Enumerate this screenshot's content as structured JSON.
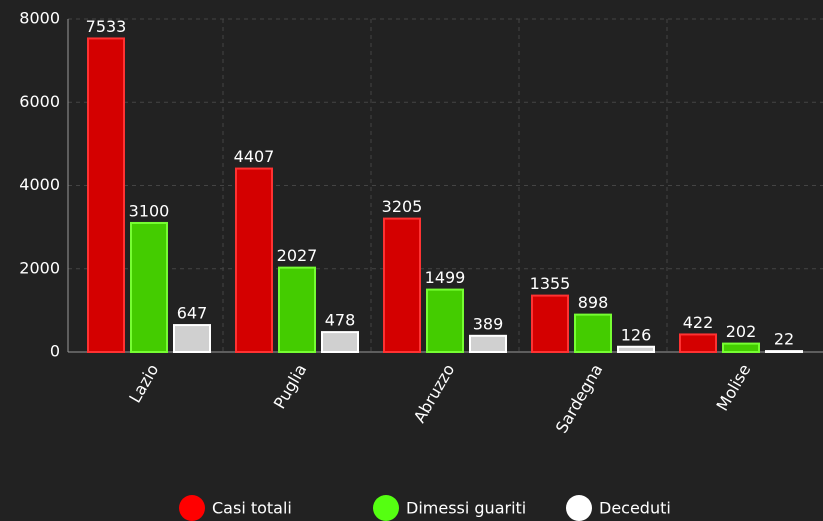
{
  "chart_data": {
    "type": "bar",
    "categories": [
      "Lazio",
      "Puglia",
      "Abruzzo",
      "Sardegna",
      "Molise"
    ],
    "series": [
      {
        "name": "Casi totali",
        "color": "#d40000",
        "values": [
          7533,
          4407,
          3205,
          1355,
          422
        ]
      },
      {
        "name": "Dimessi guariti",
        "color": "#44cc00",
        "values": [
          3100,
          2027,
          1499,
          898,
          202
        ]
      },
      {
        "name": "Deceduti",
        "color": "#d0d0d0",
        "values": [
          647,
          478,
          389,
          126,
          22
        ]
      }
    ],
    "ylim": [
      0,
      8000
    ],
    "yticks": [
      0,
      2000,
      4000,
      6000,
      8000
    ],
    "grid": true,
    "legend": "bottom"
  }
}
